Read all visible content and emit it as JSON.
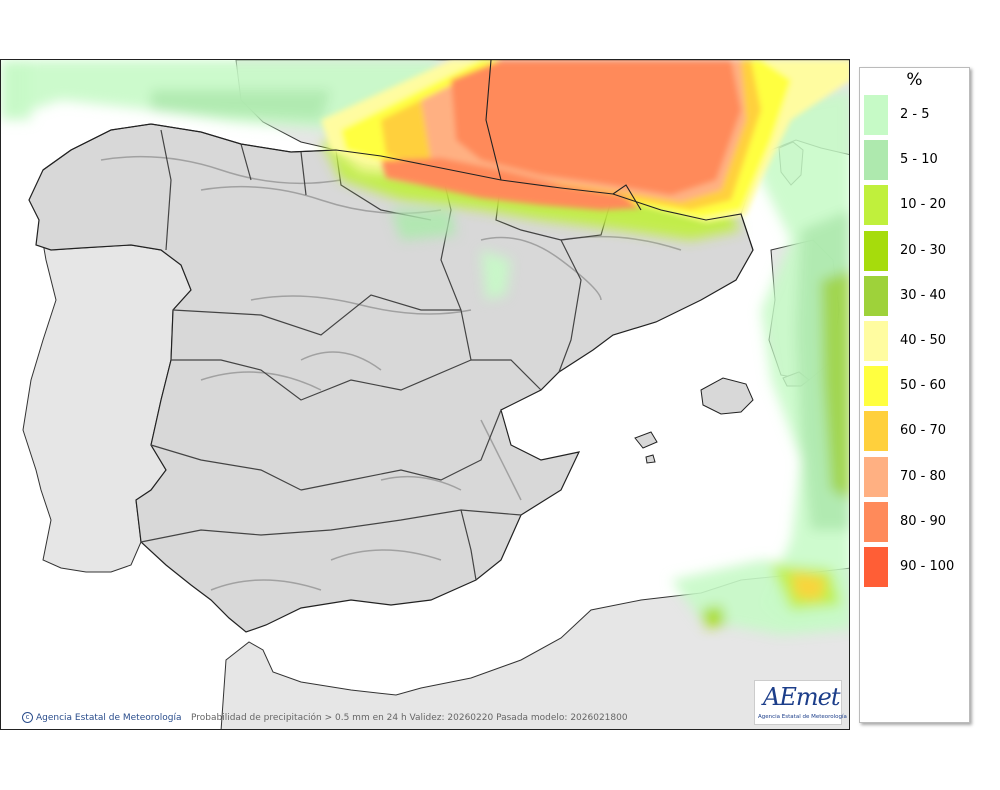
{
  "map": {
    "caption": "Probabilidad de precipitación > 0.5 mm en 24 h Validez: 20260220 Pasada modelo: 2026021800",
    "agency_footer": "Agencia Estatal de Meteorología",
    "logo_text": "AEmet",
    "logo_subtext": "Agencia Estatal de Meteorología"
  },
  "legend": {
    "unit": "%",
    "classes": [
      {
        "label": "2 - 5",
        "color": "#c6fac6"
      },
      {
        "label": "5 - 10",
        "color": "#aee9ae"
      },
      {
        "label": "10 - 20",
        "color": "#c0f03c"
      },
      {
        "label": "20 - 30",
        "color": "#a6dc0c"
      },
      {
        "label": "30 - 40",
        "color": "#9ed23a"
      },
      {
        "label": "40 - 50",
        "color": "#fffca0"
      },
      {
        "label": "50 - 60",
        "color": "#ffff40"
      },
      {
        "label": "60 - 70",
        "color": "#ffd03c"
      },
      {
        "label": "70 - 80",
        "color": "#ffb082"
      },
      {
        "label": "80 - 90",
        "color": "#ff8a5a"
      },
      {
        "label": "90 - 100",
        "color": "#ff5e36"
      }
    ]
  },
  "colors": {
    "land": "#d8d8d8",
    "foreign_land": "#e6e6e6",
    "sea": "#ffffff",
    "border": "#222222"
  }
}
